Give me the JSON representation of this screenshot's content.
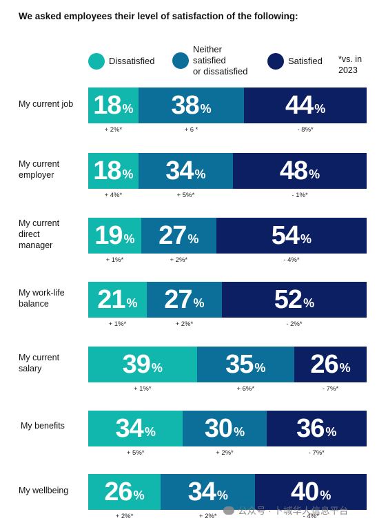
{
  "title": "We asked employees their level of satisfaction of the following:",
  "legend": [
    {
      "label": "Dissatisfied",
      "color": "#11b7ad"
    },
    {
      "label": "Neither\nsatisfied\nor dissatisfied",
      "color": "#0b6f99"
    },
    {
      "label": "Satisfied",
      "color": "#0c1f63"
    }
  ],
  "legend_note": "*vs. in\n2023",
  "watermark": "公众号 · 卜城华人信息平台",
  "chart_data": {
    "type": "bar",
    "orientation": "horizontal",
    "stacked": true,
    "unit": "%",
    "categories": [
      "My current job",
      "My current\nemployer",
      "My current\ndirect\nmanager",
      "My work-life\nbalance",
      "My current\nsalary",
      "My benefits",
      "My wellbeing"
    ],
    "series": [
      {
        "name": "Dissatisfied",
        "color": "#11b7ad",
        "values": [
          18,
          18,
          19,
          21,
          39,
          34,
          26
        ],
        "changes": [
          "+ 2%*",
          "+ 4%*",
          "+ 1%*",
          "+ 1%*",
          "+ 1%*",
          "+ 5%*",
          "+ 2%*"
        ]
      },
      {
        "name": "Neither satisfied or dissatisfied",
        "color": "#0b6f99",
        "values": [
          38,
          34,
          27,
          27,
          35,
          30,
          34
        ],
        "changes": [
          "+ 6 *",
          "+ 5%*",
          "+ 2%*",
          "+ 2%*",
          "+ 6%*",
          "+ 2%*",
          "+ 2%*"
        ]
      },
      {
        "name": "Satisfied",
        "color": "#0c1f63",
        "values": [
          44,
          48,
          54,
          52,
          26,
          36,
          40
        ],
        "changes": [
          "- 8%*",
          "- 1%*",
          "- 4%*",
          "- 2%*",
          "- 7%*",
          "- 7%*",
          "- 4%*"
        ]
      }
    ]
  }
}
